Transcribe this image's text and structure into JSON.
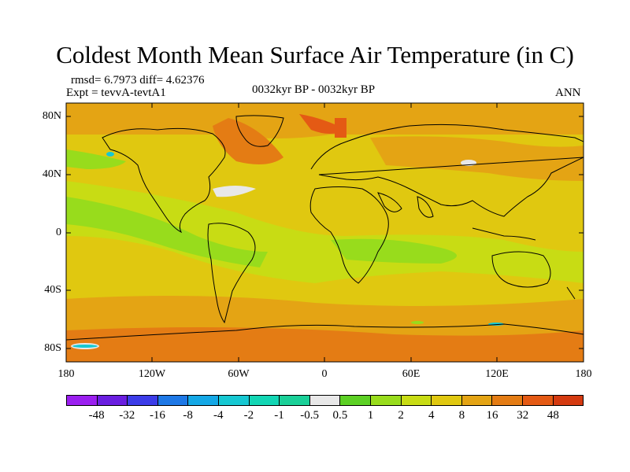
{
  "title": "Coldest Month Mean Surface Air Temperature (in C)",
  "stats": "rmsd= 6.7973 diff= 4.62376",
  "experiment": "Expt = tevvA-tevtA1",
  "period": "0032kyr BP - 0032kyr BP",
  "season": "ANN",
  "y_axis_labels": [
    "80N",
    "40N",
    "0",
    "40S",
    "80S"
  ],
  "x_axis_labels": [
    "180",
    "120W",
    "60W",
    "0",
    "60E",
    "120E",
    "180"
  ],
  "colorbar": {
    "labels": [
      "-48",
      "-32",
      "-16",
      "-8",
      "-4",
      "-2",
      "-1",
      "-0.5",
      "0.5",
      "1",
      "2",
      "4",
      "8",
      "16",
      "32",
      "48"
    ],
    "colors": [
      "#9b1ff0",
      "#6a1ee0",
      "#3c3ce8",
      "#1e78e6",
      "#14a8e6",
      "#16c8d2",
      "#12d6b4",
      "#1ad098",
      "#e8e8e8",
      "#5cd024",
      "#98dc1c",
      "#c8dc14",
      "#e0c810",
      "#e4a414",
      "#e47c14",
      "#e45a14",
      "#d43a10"
    ]
  }
}
